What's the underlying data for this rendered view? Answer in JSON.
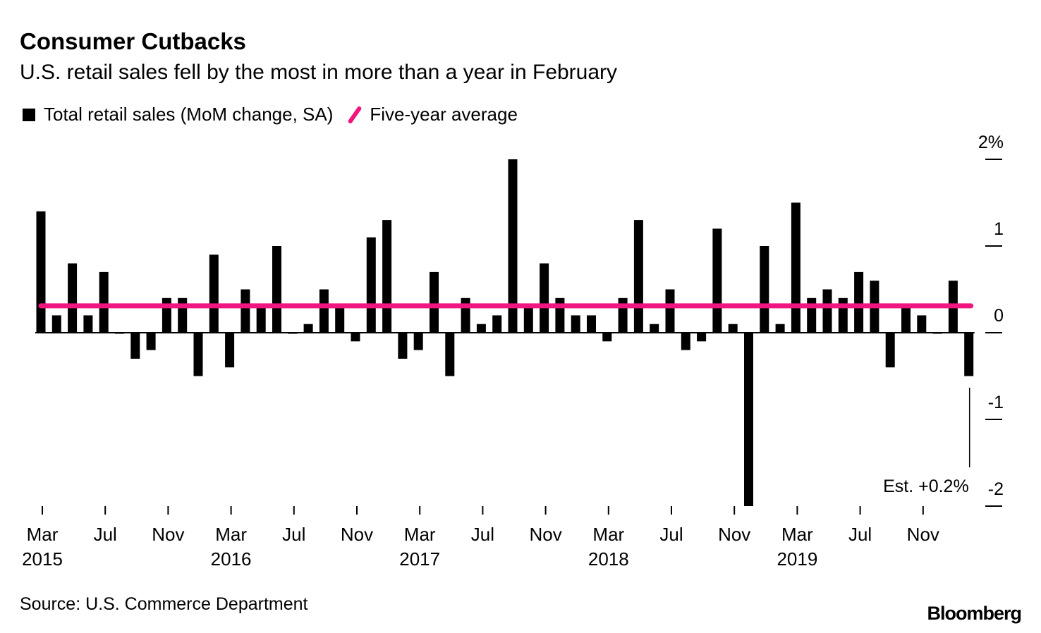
{
  "title": "Consumer Cutbacks",
  "subtitle": "U.S. retail sales fell by the most in more than a year in February",
  "source": "Source: U.S. Commerce Department",
  "brand": "Bloomberg",
  "colors": {
    "bars": "#000000",
    "average": "#f0157f"
  },
  "chart_data": {
    "type": "bar",
    "legend": [
      "Total retail sales (MoM change, SA)",
      "Five-year average"
    ],
    "legend_placement": "top-left",
    "x_start": "2015-03",
    "x_end": "2020-02",
    "x_tick_labels": [
      {
        "month": "Mar",
        "year": "2015",
        "index": 0
      },
      {
        "month": "Jul",
        "year": "",
        "index": 4
      },
      {
        "month": "Nov",
        "year": "",
        "index": 8
      },
      {
        "month": "Mar",
        "year": "2016",
        "index": 12
      },
      {
        "month": "Jul",
        "year": "",
        "index": 16
      },
      {
        "month": "Nov",
        "year": "",
        "index": 20
      },
      {
        "month": "Mar",
        "year": "2017",
        "index": 24
      },
      {
        "month": "Jul",
        "year": "",
        "index": 28
      },
      {
        "month": "Nov",
        "year": "",
        "index": 32
      },
      {
        "month": "Mar",
        "year": "2018",
        "index": 36
      },
      {
        "month": "Jul",
        "year": "",
        "index": 40
      },
      {
        "month": "Nov",
        "year": "",
        "index": 44
      },
      {
        "month": "Mar",
        "year": "2019",
        "index": 48
      },
      {
        "month": "Jul",
        "year": "",
        "index": 52
      },
      {
        "month": "Nov",
        "year": "",
        "index": 56
      }
    ],
    "y_ticks": [
      {
        "value": 2,
        "label": "2%"
      },
      {
        "value": 1,
        "label": "1"
      },
      {
        "value": 0,
        "label": "0"
      },
      {
        "value": -1,
        "label": "-1"
      },
      {
        "value": -2,
        "label": "-2"
      }
    ],
    "ylim": [
      -2,
      2
    ],
    "y_axis_side": "right",
    "grid": false,
    "series": [
      {
        "name": "Total retail sales (MoM change, SA)",
        "values": [
          1.4,
          0.2,
          0.8,
          0.2,
          0.7,
          0.0,
          -0.3,
          -0.2,
          0.4,
          0.4,
          -0.5,
          0.9,
          -0.4,
          0.5,
          0.3,
          1.0,
          0.0,
          0.1,
          0.5,
          0.3,
          -0.1,
          1.1,
          1.3,
          -0.3,
          -0.2,
          0.7,
          -0.5,
          0.4,
          0.1,
          0.2,
          2.0,
          0.3,
          0.8,
          0.4,
          0.2,
          0.2,
          -0.1,
          0.4,
          1.3,
          0.1,
          0.5,
          -0.2,
          -0.1,
          1.2,
          0.1,
          -2.0,
          1.0,
          0.1,
          1.5,
          0.4,
          0.5,
          0.4,
          0.7,
          0.6,
          -0.4,
          0.3,
          0.2,
          0.0,
          0.6,
          -0.5
        ]
      },
      {
        "name": "Five-year average",
        "value": 0.31
      }
    ],
    "annotation": {
      "text": "Est. +0.2%",
      "target_month": "2020-02"
    }
  }
}
